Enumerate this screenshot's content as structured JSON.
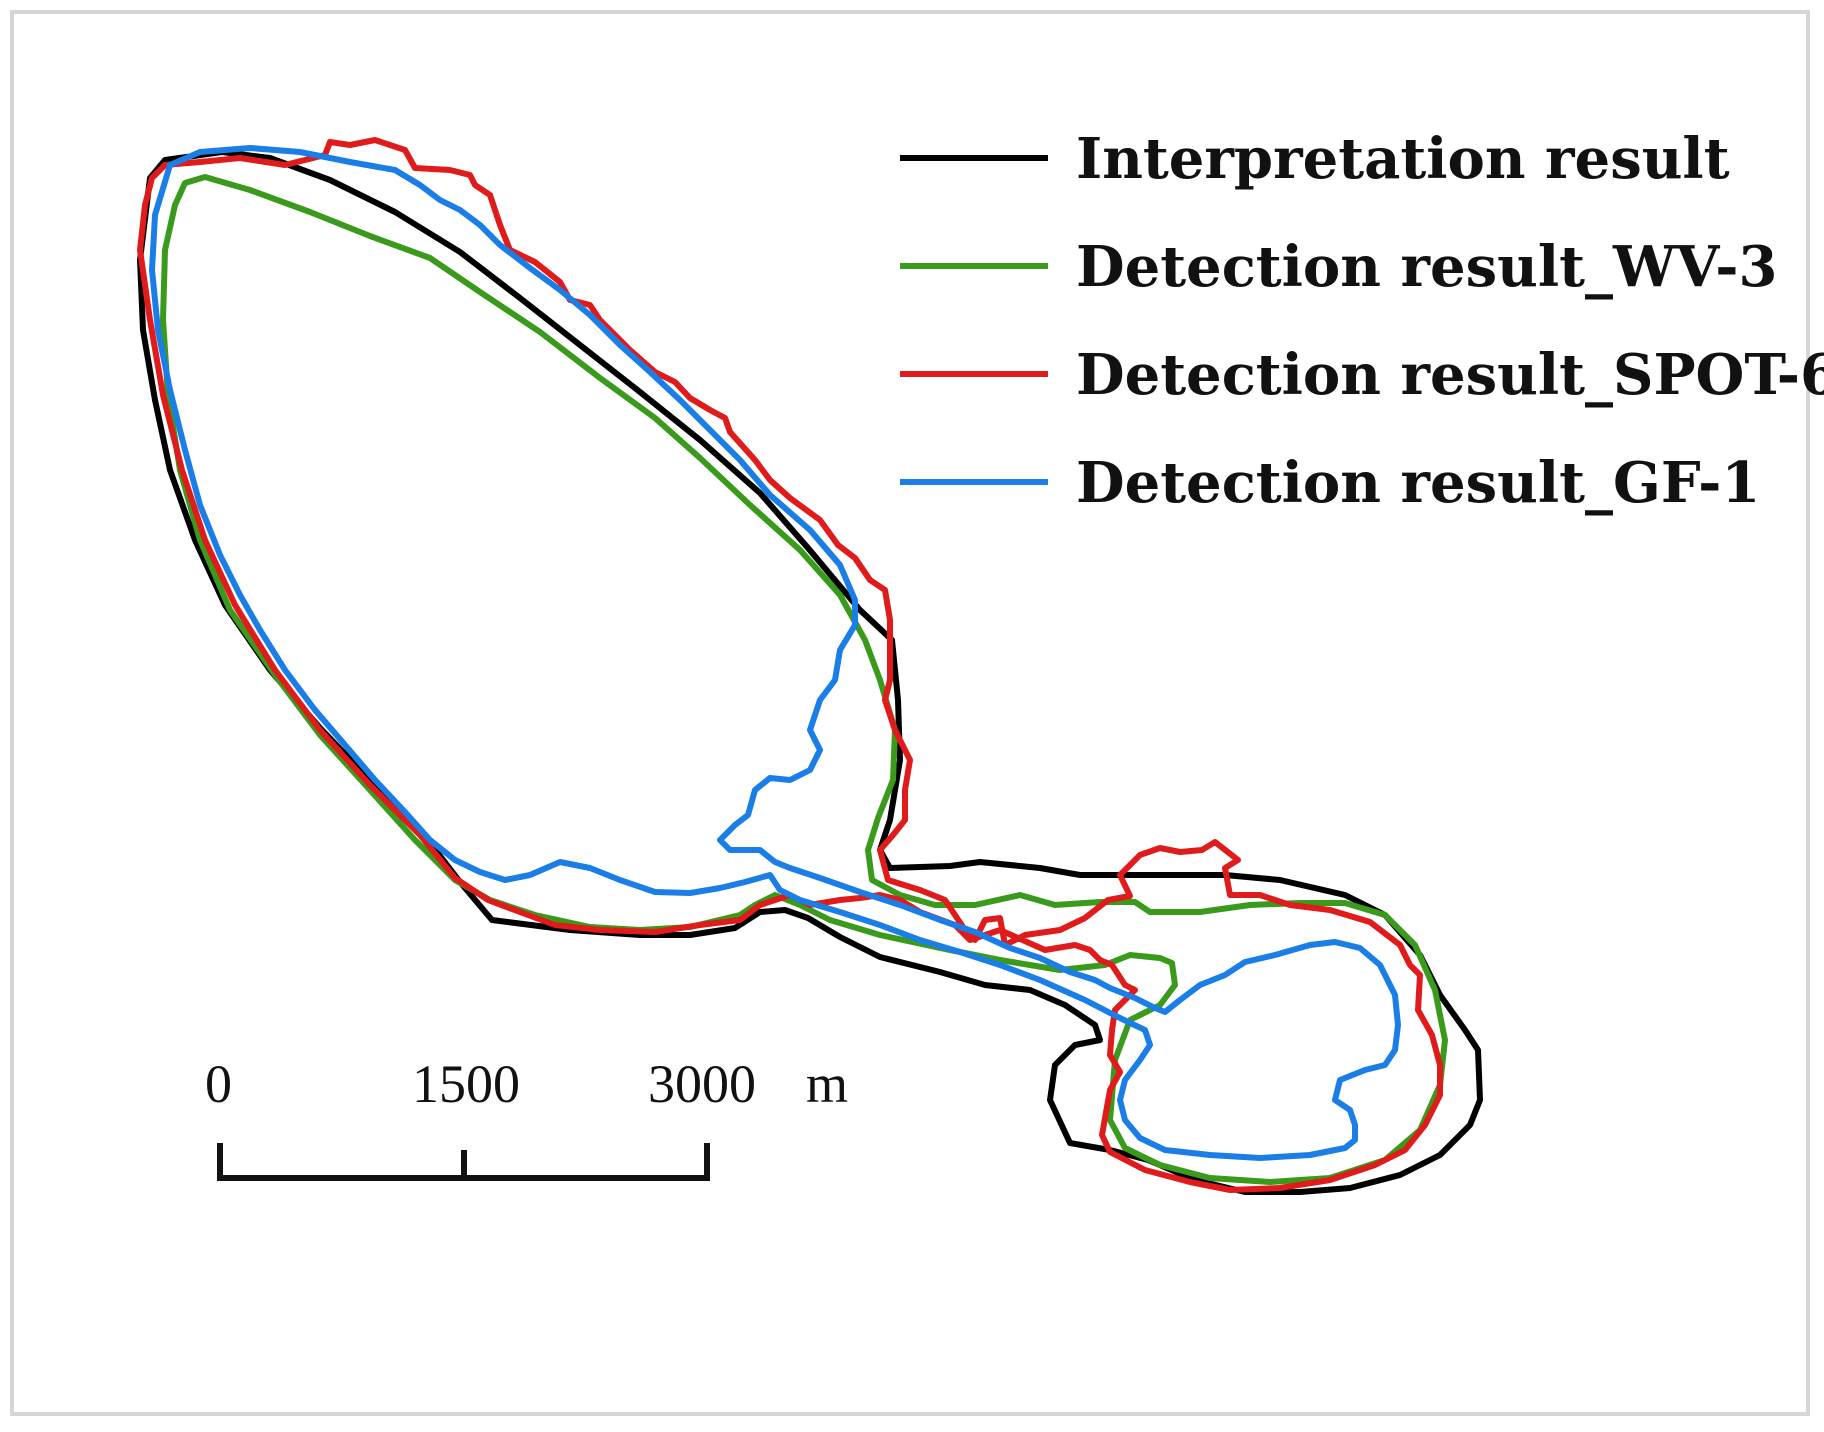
{
  "legend": {
    "items": [
      {
        "label": "Interpretation result",
        "color": "#000000"
      },
      {
        "label": "Detection result_WV-3",
        "color": "#3a9a1c"
      },
      {
        "label": "Detection result_SPOT-6",
        "color": "#e01b1b"
      },
      {
        "label": "Detection result_GF-1",
        "color": "#1a7ee6"
      }
    ]
  },
  "scale_bar": {
    "ticks": [
      "0",
      "1500",
      "3000"
    ],
    "unit": "m"
  }
}
